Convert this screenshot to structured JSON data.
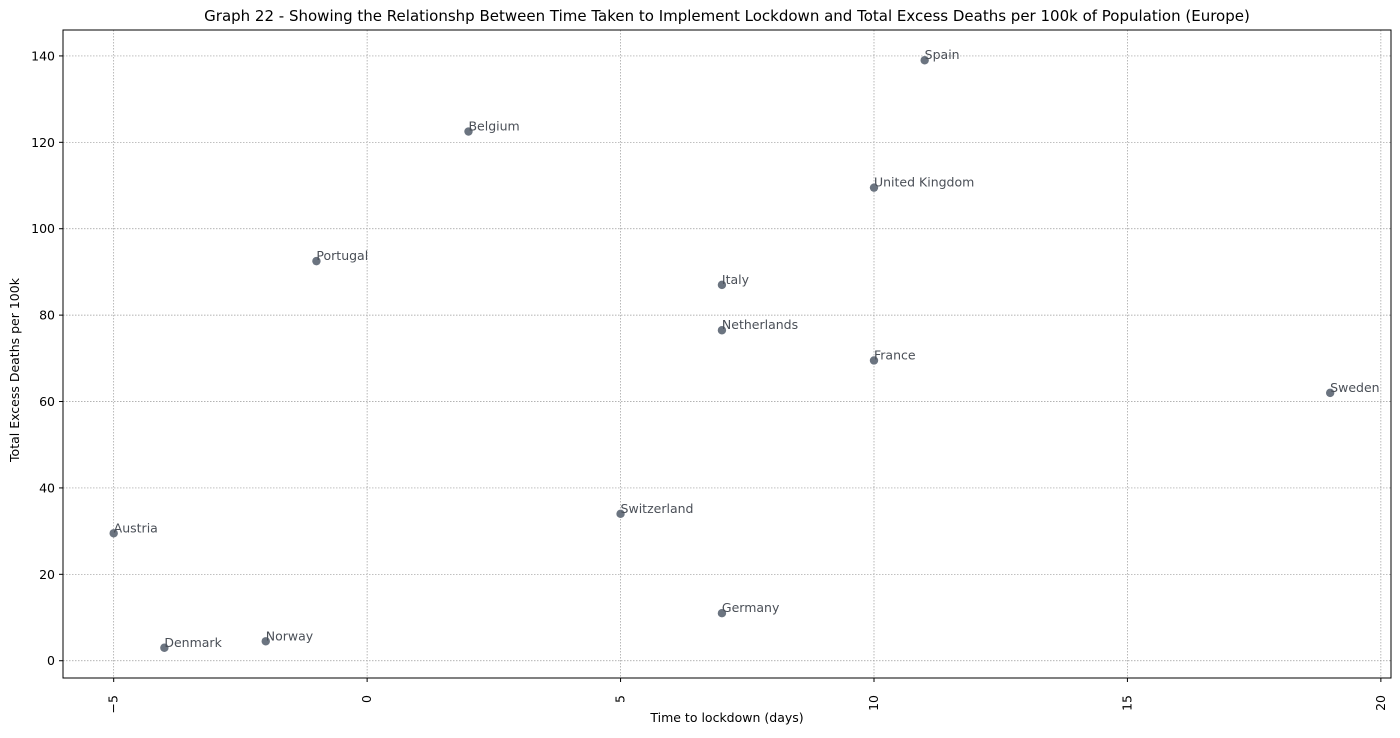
{
  "chart_data": {
    "type": "scatter",
    "title": "Graph 22 - Showing the Relationshp Between Time Taken to Implement Lockdown and Total Excess Deaths per 100k of Population (Europe)",
    "xlabel": "Time to lockdown (days)",
    "ylabel": "Total Excess Deaths per 100k",
    "xlim": [
      -6,
      20.2
    ],
    "ylim": [
      -4,
      146
    ],
    "xticks": [
      -5,
      0,
      5,
      10,
      15,
      20
    ],
    "xtick_labels": [
      "−5",
      "0",
      "5",
      "10",
      "15",
      "20"
    ],
    "xtick_rotation": -90,
    "yticks": [
      0,
      20,
      40,
      60,
      80,
      100,
      120,
      140
    ],
    "ytick_labels": [
      "0",
      "20",
      "40",
      "60",
      "80",
      "100",
      "120",
      "140"
    ],
    "grid": true,
    "marker_color": "#6b7480",
    "label_color": "#4a4f57",
    "points": [
      {
        "label": "Spain",
        "x": 11,
        "y": 139
      },
      {
        "label": "Belgium",
        "x": 2,
        "y": 122.5
      },
      {
        "label": "United Kingdom",
        "x": 10,
        "y": 109.5
      },
      {
        "label": "Portugal",
        "x": -1,
        "y": 92.5
      },
      {
        "label": "Italy",
        "x": 7,
        "y": 87
      },
      {
        "label": "Netherlands",
        "x": 7,
        "y": 76.5
      },
      {
        "label": "France",
        "x": 10,
        "y": 69.5
      },
      {
        "label": "Sweden",
        "x": 19,
        "y": 62
      },
      {
        "label": "Switzerland",
        "x": 5,
        "y": 34
      },
      {
        "label": "Austria",
        "x": -5,
        "y": 29.5
      },
      {
        "label": "Germany",
        "x": 7,
        "y": 11
      },
      {
        "label": "Norway",
        "x": -2,
        "y": 4.5
      },
      {
        "label": "Denmark",
        "x": -4,
        "y": 3
      }
    ]
  }
}
